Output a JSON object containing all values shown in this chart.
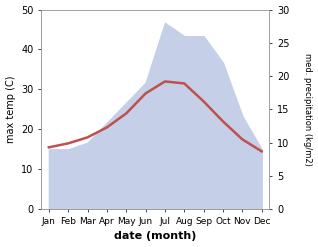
{
  "months": [
    "Jan",
    "Feb",
    "Mar",
    "Apr",
    "May",
    "Jun",
    "Jul",
    "Aug",
    "Sep",
    "Oct",
    "Nov",
    "Dec"
  ],
  "temp_max": [
    15.5,
    16.5,
    18.0,
    20.5,
    24.0,
    29.0,
    32.0,
    31.5,
    27.0,
    22.0,
    17.5,
    14.5
  ],
  "precip": [
    9,
    9,
    10,
    13,
    16,
    19,
    28,
    26,
    26,
    22,
    14,
    9
  ],
  "temp_ylim": [
    0,
    50
  ],
  "precip_ylim": [
    0,
    30
  ],
  "temp_color": "#c0504d",
  "precip_fill_color": "#c5cfe8",
  "xlabel": "date (month)",
  "ylabel_left": "max temp (C)",
  "ylabel_right": "med. precipitation (kg/m2)",
  "temp_yticks": [
    0,
    10,
    20,
    30,
    40,
    50
  ],
  "precip_yticks": [
    0,
    5,
    10,
    15,
    20,
    25,
    30
  ],
  "figsize": [
    3.18,
    2.47
  ],
  "dpi": 100
}
